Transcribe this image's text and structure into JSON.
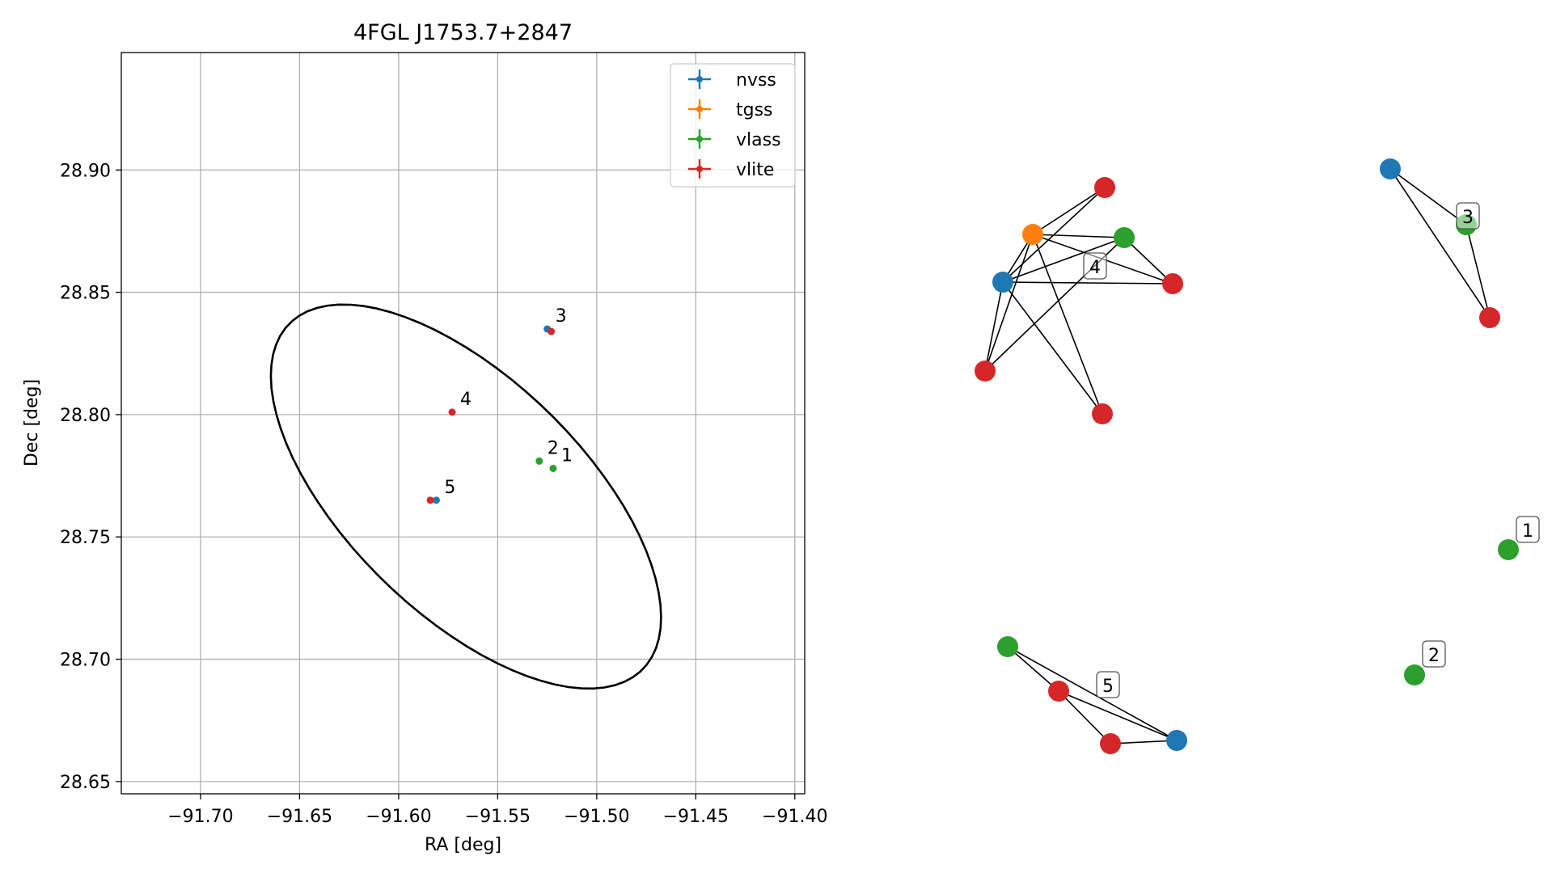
{
  "chart_data": [
    {
      "type": "scatter",
      "title": "4FGL J1753.7+2847",
      "xlabel": "RA [deg]",
      "ylabel": "Dec [deg]",
      "xlim": [
        -91.74,
        -91.395
      ],
      "ylim": [
        28.645,
        28.948
      ],
      "xticks": [
        -91.7,
        -91.65,
        -91.6,
        -91.55,
        -91.5,
        -91.45,
        -91.4
      ],
      "xtick_labels": [
        "−91.70",
        "−91.65",
        "−91.60",
        "−91.55",
        "−91.50",
        "−91.45",
        "−91.40"
      ],
      "yticks": [
        28.65,
        28.7,
        28.75,
        28.8,
        28.85,
        28.9
      ],
      "ytick_labels": [
        "28.65",
        "28.70",
        "28.75",
        "28.80",
        "28.85",
        "28.90"
      ],
      "grid": true,
      "legend_position": "top-right",
      "series": [
        {
          "name": "nvss",
          "color": "#1f77b4",
          "points": [
            [
              -91.525,
              28.835
            ],
            [
              -91.581,
              28.765
            ]
          ]
        },
        {
          "name": "tgss",
          "color": "#ff7f0e",
          "points": []
        },
        {
          "name": "vlass",
          "color": "#2ca02c",
          "points": [
            [
              -91.522,
              28.778
            ],
            [
              -91.529,
              28.781
            ]
          ]
        },
        {
          "name": "vlite",
          "color": "#d62728",
          "points": [
            [
              -91.523,
              28.834
            ],
            [
              -91.573,
              28.801
            ],
            [
              -91.584,
              28.765
            ]
          ]
        }
      ],
      "point_labels": [
        {
          "text": "3",
          "x": -91.525,
          "y": 28.835
        },
        {
          "text": "4",
          "x": -91.573,
          "y": 28.801
        },
        {
          "text": "2",
          "x": -91.529,
          "y": 28.781
        },
        {
          "text": "1",
          "x": -91.522,
          "y": 28.778
        },
        {
          "text": "5",
          "x": -91.581,
          "y": 28.765
        }
      ],
      "ellipse": {
        "center": [
          -91.566,
          28.7665
        ],
        "semi_axes": [
          0.1145,
          0.0525
        ],
        "angle_deg": -35,
        "color": "#000000"
      }
    },
    {
      "type": "network",
      "node_colors": {
        "nvss": "#1f77b4",
        "tgss": "#ff7f0e",
        "vlass": "#2ca02c",
        "vlite": "#d62728"
      },
      "clusters": [
        {
          "label": "4",
          "nodes": [
            "nvss",
            "tgss",
            "vlass",
            "vlite",
            "vlite",
            "vlite",
            "vlite"
          ]
        },
        {
          "label": "3",
          "nodes": [
            "nvss",
            "vlass",
            "vlite"
          ]
        },
        {
          "label": "5",
          "nodes": [
            "vlass",
            "vlite",
            "vlite",
            "nvss"
          ]
        },
        {
          "label": "1",
          "nodes": [
            "vlass"
          ]
        },
        {
          "label": "2",
          "nodes": [
            "vlass"
          ]
        }
      ]
    }
  ]
}
